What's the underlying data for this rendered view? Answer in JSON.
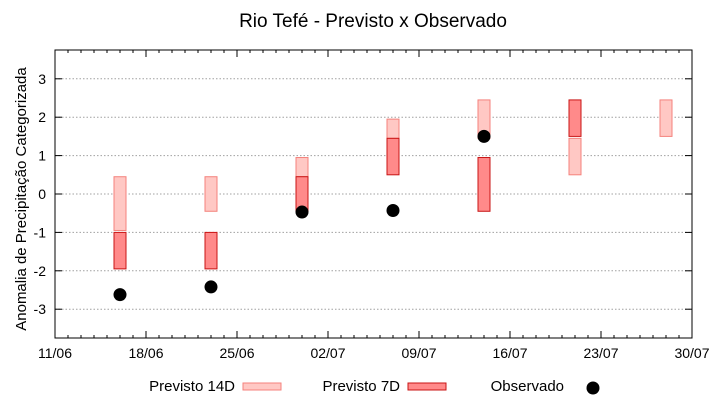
{
  "chart_data": {
    "type": "bar",
    "title": "Rio Tefé - Previsto x Observado",
    "xlabel": "",
    "ylabel": "Anomalia de Precipitação Categorizada",
    "ylim": [
      -3.75,
      3.75
    ],
    "yticks": [
      -3,
      -2,
      -1,
      0,
      1,
      2,
      3
    ],
    "ytick_labels": [
      "-3",
      "-2",
      "-1",
      "0",
      "1",
      "2",
      "3"
    ],
    "xlim": [
      "2023-06-11",
      "2023-07-30"
    ],
    "xticks": [
      "2023-06-11",
      "2023-06-18",
      "2023-06-25",
      "2023-07-02",
      "2023-07-09",
      "2023-07-16",
      "2023-07-23",
      "2023-07-30"
    ],
    "xtick_labels": [
      "11/06",
      "18/06",
      "25/06",
      "02/07",
      "09/07",
      "16/07",
      "23/07",
      "30/07"
    ],
    "grid": true,
    "legend_position": "bottom",
    "series": [
      {
        "name": "Previsto 14D",
        "kind": "range",
        "color": "#ffc8c4",
        "stroke": "#f4827c",
        "points": [
          {
            "x": "2023-06-16",
            "low": -0.95,
            "high": 0.45
          },
          {
            "x": "2023-06-23",
            "low": -0.45,
            "high": 0.45
          },
          {
            "x": "2023-06-30",
            "low": 0.45,
            "high": 0.95
          },
          {
            "x": "2023-07-07",
            "low": 1.45,
            "high": 1.95
          },
          {
            "x": "2023-07-14",
            "low": 1.45,
            "high": 2.45
          },
          {
            "x": "2023-07-21",
            "low": 0.5,
            "high": 1.45
          },
          {
            "x": "2023-07-28",
            "low": 1.5,
            "high": 2.45
          }
        ]
      },
      {
        "name": "Previsto 7D",
        "kind": "range",
        "color": "#ff8a8a",
        "stroke": "#c81414",
        "points": [
          {
            "x": "2023-06-16",
            "low": -1.95,
            "high": -1.0
          },
          {
            "x": "2023-06-23",
            "low": -1.95,
            "high": -1.0
          },
          {
            "x": "2023-06-30",
            "low": -0.45,
            "high": 0.45
          },
          {
            "x": "2023-07-07",
            "low": 0.5,
            "high": 1.45
          },
          {
            "x": "2023-07-14",
            "low": -0.45,
            "high": 0.95
          },
          {
            "x": "2023-07-21",
            "low": 1.5,
            "high": 2.45
          }
        ]
      },
      {
        "name": "Observado",
        "kind": "point",
        "color": "#000000",
        "points": [
          {
            "x": "2023-06-16",
            "y": -2.62
          },
          {
            "x": "2023-06-23",
            "y": -2.42
          },
          {
            "x": "2023-06-30",
            "y": -0.47
          },
          {
            "x": "2023-07-07",
            "y": -0.43
          },
          {
            "x": "2023-07-14",
            "y": 1.5
          }
        ]
      }
    ]
  }
}
